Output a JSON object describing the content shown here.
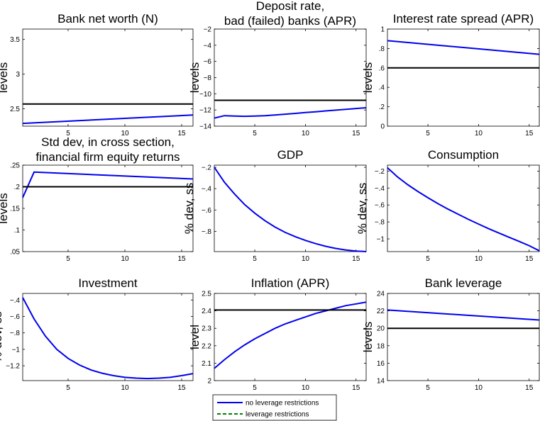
{
  "colors": {
    "no_restrictions": "#0000ee",
    "restrictions_line": "#000000",
    "legend_dashed": "#008000"
  },
  "legend": {
    "entries": [
      {
        "label": "no leverage restrictions",
        "color": "#0000ee",
        "style": "solid"
      },
      {
        "label": "leverage restrictions",
        "color": "#008000",
        "style": "dashed"
      }
    ]
  },
  "chart_data": [
    {
      "type": "line",
      "title": [
        "Bank net worth (N)"
      ],
      "ylabel": "levels",
      "xlim": [
        1,
        16
      ],
      "ylim": [
        2.25,
        3.65
      ],
      "xticks": [
        5,
        10,
        15
      ],
      "yticks": [
        2.5,
        3,
        3.5
      ],
      "series": [
        {
          "name": "no leverage restrictions",
          "x": [
            1,
            16
          ],
          "y": [
            2.29,
            2.41
          ]
        },
        {
          "name": "leverage restrictions",
          "x": [
            1,
            16
          ],
          "y": [
            2.57,
            2.57
          ]
        }
      ]
    },
    {
      "type": "line",
      "title": [
        "Deposit rate,",
        "bad (failed) banks (APR)"
      ],
      "ylabel": "levels",
      "xlim": [
        1,
        16
      ],
      "ylim": [
        -14,
        -2
      ],
      "xticks": [
        5,
        10,
        15
      ],
      "yticks": [
        -14,
        -12,
        -10,
        -8,
        -6,
        -4,
        -2
      ],
      "series": [
        {
          "name": "no leverage restrictions",
          "x": [
            1,
            2,
            3,
            4,
            5,
            6,
            7,
            8,
            9,
            10,
            11,
            12,
            13,
            14,
            15,
            16
          ],
          "y": [
            -13.0,
            -12.7,
            -12.75,
            -12.78,
            -12.75,
            -12.7,
            -12.62,
            -12.52,
            -12.42,
            -12.32,
            -12.22,
            -12.12,
            -12.02,
            -11.92,
            -11.82,
            -11.72
          ]
        },
        {
          "name": "leverage restrictions",
          "x": [
            1,
            16
          ],
          "y": [
            -10.8,
            -10.8
          ]
        }
      ]
    },
    {
      "type": "line",
      "title": [
        "Interest rate spread (APR)"
      ],
      "ylabel": "levels",
      "xlim": [
        1,
        16
      ],
      "ylim": [
        0,
        1
      ],
      "xticks": [
        5,
        10,
        15
      ],
      "yticks": [
        0,
        0.2,
        0.4,
        0.6,
        0.8,
        1
      ],
      "series": [
        {
          "name": "no leverage restrictions",
          "x": [
            1,
            16
          ],
          "y": [
            0.88,
            0.74
          ]
        },
        {
          "name": "leverage restrictions",
          "x": [
            1,
            16
          ],
          "y": [
            0.6,
            0.6
          ]
        }
      ]
    },
    {
      "type": "line",
      "title": [
        "Std dev, in cross section,",
        "financial firm equity returns"
      ],
      "ylabel": "levels",
      "xlim": [
        1,
        16
      ],
      "ylim": [
        0.05,
        0.25
      ],
      "xticks": [
        5,
        10,
        15
      ],
      "yticks": [
        0.05,
        0.1,
        0.15,
        0.2,
        0.25
      ],
      "series": [
        {
          "name": "no leverage restrictions",
          "x": [
            1,
            2,
            16
          ],
          "y": [
            0.175,
            0.234,
            0.218
          ]
        },
        {
          "name": "leverage restrictions",
          "x": [
            1,
            16
          ],
          "y": [
            0.2,
            0.2
          ]
        }
      ]
    },
    {
      "type": "line",
      "title": [
        "GDP"
      ],
      "ylabel": "% dev, ss",
      "xlim": [
        1,
        16
      ],
      "ylim": [
        -0.99,
        -0.18
      ],
      "xticks": [
        5,
        10,
        15
      ],
      "yticks": [
        -0.8,
        -0.6,
        -0.4,
        -0.2
      ],
      "series": [
        {
          "name": "no leverage restrictions",
          "x": [
            1,
            2,
            3,
            4,
            5,
            6,
            7,
            8,
            9,
            10,
            11,
            12,
            13,
            14,
            15,
            16
          ],
          "y": [
            -0.2,
            -0.34,
            -0.45,
            -0.55,
            -0.63,
            -0.7,
            -0.76,
            -0.81,
            -0.85,
            -0.885,
            -0.915,
            -0.94,
            -0.96,
            -0.975,
            -0.985,
            -0.99
          ]
        }
      ]
    },
    {
      "type": "line",
      "title": [
        "Consumption"
      ],
      "ylabel": "% dev, ss",
      "xlim": [
        1,
        16
      ],
      "ylim": [
        -1.15,
        -0.13
      ],
      "xticks": [
        5,
        10,
        15
      ],
      "yticks": [
        -1,
        -0.8,
        -0.6,
        -0.4,
        -0.2
      ],
      "series": [
        {
          "name": "no leverage restrictions",
          "x": [
            1,
            2,
            3,
            4,
            5,
            6,
            7,
            8,
            9,
            10,
            11,
            12,
            13,
            14,
            15,
            16
          ],
          "y": [
            -0.16,
            -0.27,
            -0.36,
            -0.44,
            -0.515,
            -0.585,
            -0.65,
            -0.71,
            -0.77,
            -0.825,
            -0.88,
            -0.93,
            -0.98,
            -1.03,
            -1.08,
            -1.14
          ]
        }
      ]
    },
    {
      "type": "line",
      "title": [
        "Investment"
      ],
      "ylabel": "% dev, ss",
      "xlim": [
        1,
        16
      ],
      "ylim": [
        -1.38,
        -0.32
      ],
      "xticks": [
        5,
        10,
        15
      ],
      "yticks": [
        -1.2,
        -1,
        -0.8,
        -0.6,
        -0.4
      ],
      "series": [
        {
          "name": "no leverage restrictions",
          "x": [
            1,
            2,
            3,
            4,
            5,
            6,
            7,
            8,
            9,
            10,
            11,
            12,
            13,
            14,
            15,
            16
          ],
          "y": [
            -0.37,
            -0.63,
            -0.84,
            -1.0,
            -1.11,
            -1.19,
            -1.25,
            -1.29,
            -1.32,
            -1.34,
            -1.35,
            -1.355,
            -1.35,
            -1.34,
            -1.32,
            -1.295
          ]
        }
      ]
    },
    {
      "type": "line",
      "title": [
        "Inflation (APR)"
      ],
      "ylabel": "level",
      "xlim": [
        1,
        16
      ],
      "ylim": [
        2,
        2.5
      ],
      "xticks": [
        5,
        10,
        15
      ],
      "yticks": [
        2,
        2.1,
        2.2,
        2.3,
        2.4,
        2.5
      ],
      "series": [
        {
          "name": "no leverage restrictions",
          "x": [
            1,
            2,
            3,
            4,
            5,
            6,
            7,
            8,
            9,
            10,
            11,
            12,
            13,
            14,
            15,
            16
          ],
          "y": [
            2.07,
            2.12,
            2.165,
            2.205,
            2.24,
            2.27,
            2.3,
            2.325,
            2.345,
            2.365,
            2.385,
            2.4,
            2.415,
            2.43,
            2.44,
            2.45
          ]
        },
        {
          "name": "leverage restrictions",
          "x": [
            1,
            16
          ],
          "y": [
            2.405,
            2.405
          ]
        }
      ]
    },
    {
      "type": "line",
      "title": [
        "Bank leverage"
      ],
      "ylabel": "levels",
      "xlim": [
        1,
        16
      ],
      "ylim": [
        14,
        24
      ],
      "xticks": [
        5,
        10,
        15
      ],
      "yticks": [
        14,
        16,
        18,
        20,
        22,
        24
      ],
      "series": [
        {
          "name": "no leverage restrictions",
          "x": [
            1,
            16
          ],
          "y": [
            22.1,
            20.95
          ]
        },
        {
          "name": "leverage restrictions",
          "x": [
            1,
            16
          ],
          "y": [
            20,
            20
          ]
        }
      ]
    }
  ]
}
